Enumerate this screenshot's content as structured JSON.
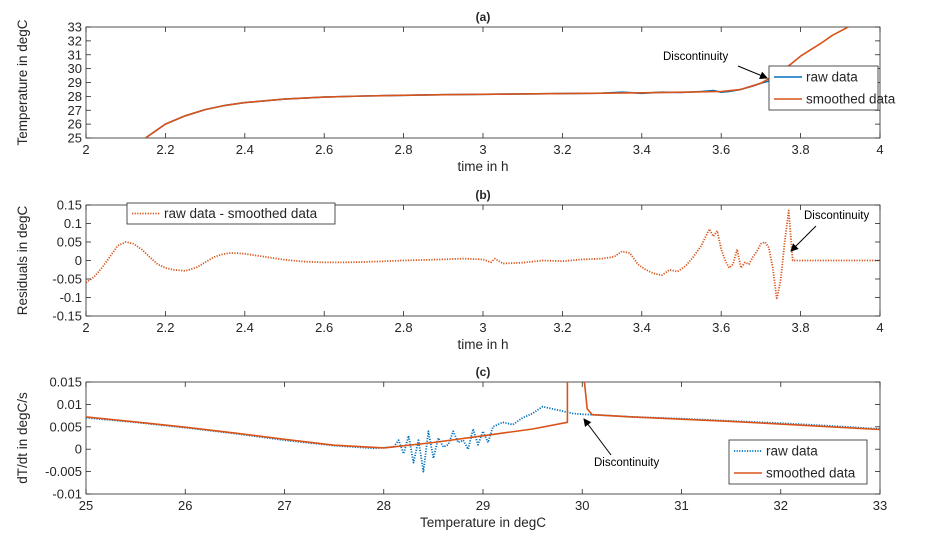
{
  "colors": {
    "raw": "#0072BD",
    "smoothed": "#D95319",
    "axis": "#262626",
    "annotation": "#000000"
  },
  "chart_data": [
    {
      "type": "line",
      "title": "(a)",
      "xlabel": "time in h",
      "ylabel": "Temperature in degC",
      "xlim": [
        2,
        4
      ],
      "ylim": [
        25,
        33
      ],
      "xticks": [
        "2",
        "2.2",
        "2.4",
        "2.6",
        "2.8",
        "3",
        "3.2",
        "3.4",
        "3.6",
        "3.8",
        "4"
      ],
      "yticks": [
        "25",
        "26",
        "27",
        "28",
        "29",
        "30",
        "31",
        "32",
        "33"
      ],
      "grid": false,
      "legend_position": "right",
      "annotation": "Discontinuity",
      "series": [
        {
          "name": "raw data",
          "style": "solid",
          "x": [
            2.15,
            2.2,
            2.25,
            2.3,
            2.35,
            2.4,
            2.5,
            2.6,
            2.7,
            2.8,
            2.9,
            3.0,
            3.1,
            3.2,
            3.3,
            3.35,
            3.4,
            3.45,
            3.5,
            3.55,
            3.58,
            3.6,
            3.62,
            3.65,
            3.68,
            3.7,
            3.72,
            3.74,
            3.76,
            3.78
          ],
          "y": [
            25.0,
            26.0,
            26.6,
            27.05,
            27.35,
            27.55,
            27.8,
            27.95,
            28.03,
            28.08,
            28.12,
            28.15,
            28.18,
            28.2,
            28.23,
            28.3,
            28.22,
            28.3,
            28.28,
            28.35,
            28.42,
            28.3,
            28.35,
            28.5,
            28.75,
            28.95,
            29.1,
            29.2,
            29.6,
            30.2
          ]
        },
        {
          "name": "smoothed data",
          "style": "solid",
          "x": [
            2.15,
            2.2,
            2.25,
            2.3,
            2.35,
            2.4,
            2.5,
            2.6,
            2.7,
            2.8,
            2.9,
            3.0,
            3.1,
            3.2,
            3.3,
            3.4,
            3.5,
            3.6,
            3.65,
            3.7,
            3.74,
            3.77,
            3.8,
            3.85,
            3.88,
            3.92
          ],
          "y": [
            25.0,
            26.0,
            26.6,
            27.05,
            27.35,
            27.55,
            27.8,
            27.95,
            28.03,
            28.08,
            28.12,
            28.15,
            28.18,
            28.2,
            28.23,
            28.26,
            28.3,
            28.35,
            28.5,
            28.95,
            29.6,
            30.2,
            30.9,
            31.8,
            32.4,
            33.0
          ]
        }
      ]
    },
    {
      "type": "line",
      "title": "(b)",
      "xlabel": "time in h",
      "ylabel": "Residuals in degC",
      "xlim": [
        2,
        4
      ],
      "ylim": [
        -0.15,
        0.15
      ],
      "xticks": [
        "2",
        "2.2",
        "2.4",
        "2.6",
        "2.8",
        "3",
        "3.2",
        "3.4",
        "3.6",
        "3.8",
        "4"
      ],
      "yticks": [
        "-0.15",
        "-0.1",
        "-0.05",
        "0",
        "0.05",
        "0.1",
        "0.15"
      ],
      "grid": false,
      "legend_position": "top-left",
      "annotation": "Discontinuity",
      "series": [
        {
          "name": "raw data - smoothed data",
          "style": "dotted",
          "x": [
            2.0,
            2.02,
            2.04,
            2.06,
            2.08,
            2.1,
            2.12,
            2.14,
            2.16,
            2.18,
            2.2,
            2.22,
            2.25,
            2.28,
            2.3,
            2.32,
            2.34,
            2.36,
            2.38,
            2.4,
            2.45,
            2.5,
            2.55,
            2.6,
            2.65,
            2.7,
            2.8,
            2.9,
            2.95,
            3.0,
            3.02,
            3.03,
            3.05,
            3.1,
            3.15,
            3.2,
            3.25,
            3.3,
            3.33,
            3.35,
            3.37,
            3.39,
            3.41,
            3.43,
            3.45,
            3.47,
            3.49,
            3.51,
            3.53,
            3.55,
            3.57,
            3.58,
            3.59,
            3.6,
            3.61,
            3.62,
            3.63,
            3.64,
            3.65,
            3.66,
            3.67,
            3.68,
            3.69,
            3.7,
            3.71,
            3.72,
            3.73,
            3.74,
            3.75,
            3.76,
            3.77,
            3.78,
            3.8,
            3.9,
            4.0
          ],
          "y": [
            -0.06,
            -0.045,
            -0.02,
            0.01,
            0.04,
            0.05,
            0.045,
            0.03,
            0.01,
            -0.01,
            -0.02,
            -0.025,
            -0.028,
            -0.018,
            -0.005,
            0.008,
            0.016,
            0.02,
            0.02,
            0.018,
            0.01,
            0.002,
            -0.003,
            -0.005,
            -0.005,
            -0.004,
            0.0,
            0.003,
            0.005,
            0.003,
            -0.005,
            0.005,
            -0.008,
            -0.006,
            0.0,
            -0.002,
            0.003,
            0.005,
            0.01,
            0.025,
            0.02,
            -0.01,
            -0.025,
            -0.035,
            -0.04,
            -0.025,
            -0.03,
            -0.015,
            0.01,
            0.04,
            0.085,
            0.065,
            0.08,
            0.03,
            0.0,
            -0.02,
            -0.01,
            0.03,
            -0.02,
            -0.005,
            -0.01,
            0.01,
            0.025,
            0.045,
            0.05,
            0.035,
            -0.02,
            -0.105,
            -0.05,
            0.05,
            0.135,
            0.0,
            0.0,
            0.0,
            0.0
          ]
        }
      ]
    },
    {
      "type": "line",
      "title": "(c)",
      "xlabel": "Temperature in degC",
      "ylabel": "dT/dt in degC/s",
      "xlim": [
        25,
        33
      ],
      "ylim": [
        -0.01,
        0.015
      ],
      "xticks": [
        "25",
        "26",
        "27",
        "28",
        "29",
        "30",
        "31",
        "32",
        "33"
      ],
      "yticks": [
        "-0.01",
        "-0.005",
        "0",
        "0.005",
        "0.01",
        "0.015"
      ],
      "grid": false,
      "legend_position": "bottom-right",
      "annotation": "Discontinuity",
      "series": [
        {
          "name": "raw data",
          "style": "dotted",
          "x": [
            25.0,
            25.5,
            26.0,
            26.5,
            27.0,
            27.5,
            27.9,
            28.1,
            28.15,
            28.2,
            28.25,
            28.3,
            28.35,
            28.4,
            28.45,
            28.5,
            28.55,
            28.6,
            28.65,
            28.7,
            28.75,
            28.8,
            28.85,
            28.9,
            28.95,
            29.0,
            29.05,
            29.1,
            29.2,
            29.3,
            29.4,
            29.5,
            29.6,
            29.7,
            29.8,
            29.9,
            30.0,
            30.1,
            30.2,
            30.5,
            31.0,
            31.5,
            32.0,
            32.5,
            33.0
          ],
          "y": [
            0.007,
            0.006,
            0.0048,
            0.0035,
            0.002,
            0.0008,
            0.0002,
            0.0005,
            0.002,
            -0.001,
            0.003,
            -0.003,
            0.002,
            -0.005,
            0.004,
            -0.002,
            0.0025,
            0.0005,
            0.001,
            0.004,
            0.0015,
            0.002,
            0.0,
            0.0045,
            0.001,
            0.004,
            0.0015,
            0.005,
            0.006,
            0.0055,
            0.007,
            0.008,
            0.0095,
            0.009,
            0.0085,
            0.008,
            0.0078,
            0.0077,
            0.0076,
            0.0072,
            0.0068,
            0.0063,
            0.0058,
            0.0052,
            0.0045
          ]
        },
        {
          "name": "smoothed data",
          "style": "solid",
          "x": [
            25.0,
            25.5,
            26.0,
            26.5,
            27.0,
            27.5,
            28.0,
            28.5,
            29.0,
            29.5,
            29.85,
            29.85,
            29.88,
            30.02,
            30.05,
            30.1,
            30.5,
            31.0,
            31.5,
            32.0,
            32.5,
            33.0
          ],
          "y": [
            0.0072,
            0.0061,
            0.0049,
            0.0036,
            0.0022,
            0.0009,
            0.0003,
            0.0015,
            0.003,
            0.0045,
            0.006,
            0.0155,
            0.0155,
            0.0155,
            0.009,
            0.0077,
            0.0072,
            0.0067,
            0.0062,
            0.0056,
            0.005,
            0.0044
          ]
        }
      ]
    }
  ]
}
